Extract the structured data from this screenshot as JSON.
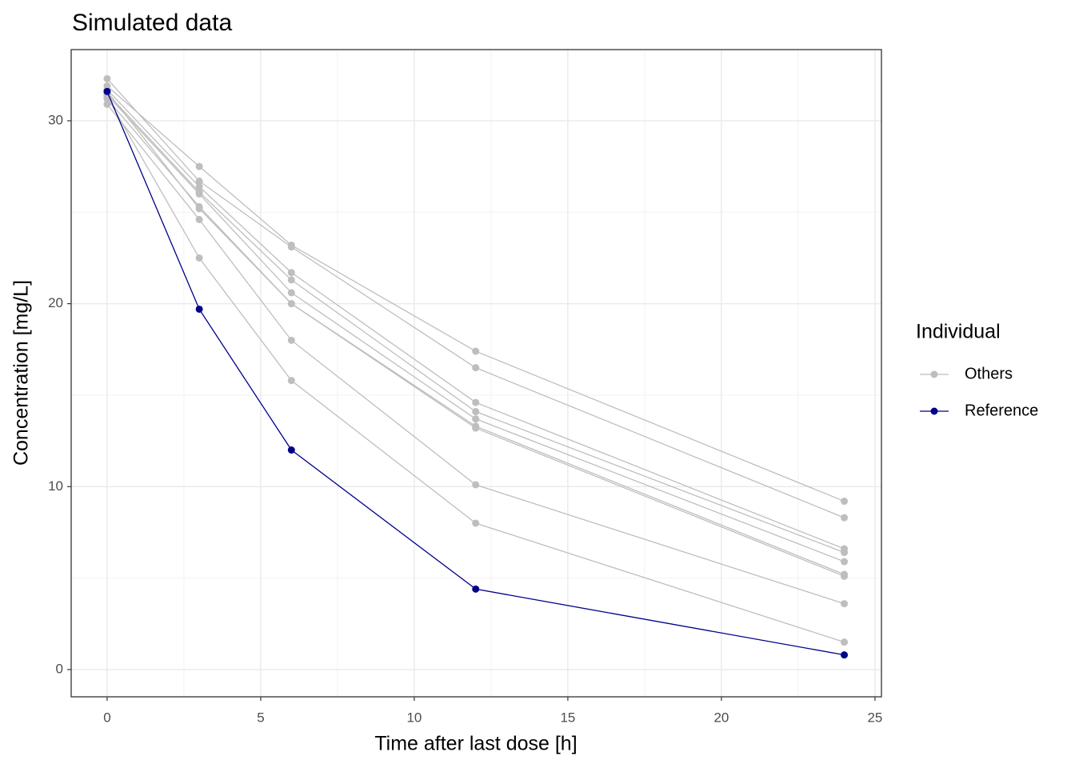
{
  "chart_data": {
    "type": "line",
    "title": "Simulated data",
    "x_label": "Time after last dose [h]",
    "y_label": "Concentration [mg/L]",
    "legend_title": "Individual",
    "legend": "right",
    "grid": true,
    "x": [
      0,
      3,
      6,
      12,
      24
    ],
    "xlim": [
      -1.17,
      25.21
    ],
    "ylim": [
      -1.49,
      33.89
    ],
    "xticks": [
      0,
      5,
      10,
      15,
      20,
      25
    ],
    "yticks": [
      0,
      10,
      20,
      30
    ],
    "xminor": [
      2.5,
      7.5,
      12.5,
      17.5,
      22.5
    ],
    "yminor": [
      5,
      15,
      25
    ],
    "series": [
      {
        "name": "Others",
        "color": "#bebebe",
        "values": [
          31.9,
          27.5,
          23.2,
          17.4,
          9.2
        ]
      },
      {
        "name": "Others",
        "color": "#bebebe",
        "values": [
          32.3,
          26.7,
          23.1,
          16.5,
          8.3
        ]
      },
      {
        "name": "Others",
        "color": "#bebebe",
        "values": [
          31.7,
          26.4,
          21.7,
          14.6,
          6.6
        ]
      },
      {
        "name": "Others",
        "color": "#bebebe",
        "values": [
          31.5,
          26.1,
          21.3,
          14.1,
          6.4
        ]
      },
      {
        "name": "Others",
        "color": "#bebebe",
        "values": [
          31.4,
          26.0,
          20.6,
          13.7,
          5.9
        ]
      },
      {
        "name": "Others",
        "color": "#bebebe",
        "values": [
          31.2,
          25.3,
          20.0,
          13.3,
          5.2
        ]
      },
      {
        "name": "Others",
        "color": "#bebebe",
        "values": [
          31.6,
          25.2,
          20.0,
          13.2,
          5.1
        ]
      },
      {
        "name": "Others",
        "color": "#bebebe",
        "values": [
          30.9,
          24.6,
          18.0,
          10.1,
          3.6
        ]
      },
      {
        "name": "Others",
        "color": "#bebebe",
        "values": [
          31.3,
          22.5,
          15.8,
          8.0,
          1.5
        ]
      },
      {
        "name": "Reference",
        "color": "#00008b",
        "values": [
          31.6,
          19.7,
          12.0,
          4.4,
          0.8
        ]
      }
    ]
  }
}
